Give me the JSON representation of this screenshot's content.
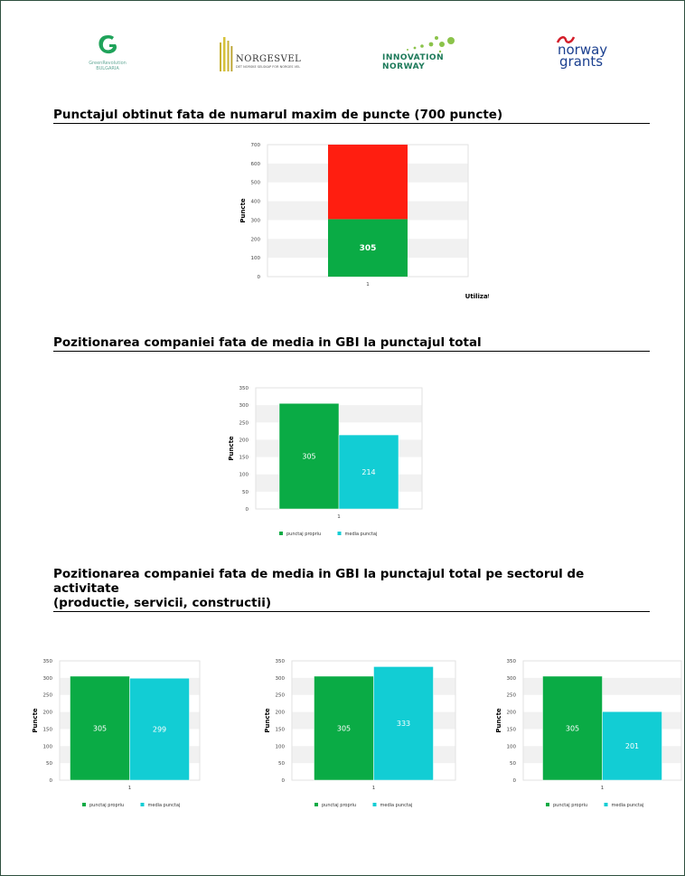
{
  "logos": {
    "greenrevolution": {
      "line1": "GreenRevolution",
      "line2": "BULGARIA"
    },
    "norgesvel": {
      "name": "NORGESVEL",
      "tagline": "DET NORSKE SELSKAP FOR NORGES VEL"
    },
    "innovation_norway": {
      "line1": "INNOVATION",
      "line2": "NORWAY"
    },
    "norway_grants": {
      "line1": "norway",
      "line2": "grants"
    }
  },
  "headings": {
    "h1": "Punctajul obtinut fata de numarul maxim de puncte (700 puncte)",
    "h2": "Pozitionarea companiei fata de media in GBI la punctajul total",
    "h3_line1": "Pozitionarea companiei fata de media in GBI la punctajul total pe sectorul de activitate",
    "h3_line2": "(productie, servicii, constructii)"
  },
  "colors": {
    "green": "#0aab45",
    "red": "#ff1e10",
    "cyan": "#12cdd4",
    "band": "#f1f1f1"
  },
  "chart_data": [
    {
      "type": "bar",
      "stacked": true,
      "categories": [
        "1"
      ],
      "series": [
        {
          "values": [
            305
          ],
          "color": "#0aab45",
          "label": "305"
        },
        {
          "values": [
            395
          ],
          "color": "#ff1e10"
        }
      ],
      "ylabel": "Puncte",
      "xlabel": "Utilizator",
      "yticks": [
        0,
        100,
        200,
        300,
        400,
        500,
        600,
        700
      ],
      "ylim": [
        0,
        700
      ]
    },
    {
      "type": "bar",
      "categories": [
        "1"
      ],
      "series": [
        {
          "name": "punctaj propriu",
          "values": [
            305
          ],
          "color": "#0aab45"
        },
        {
          "name": "media punctaj",
          "values": [
            214
          ],
          "color": "#12cdd4"
        }
      ],
      "ylabel": "Puncte",
      "yticks": [
        0,
        50,
        100,
        150,
        200,
        250,
        300,
        350
      ],
      "ylim": [
        0,
        350
      ],
      "legend": "bottom"
    },
    {
      "type": "bar",
      "categories": [
        "1"
      ],
      "series": [
        {
          "name": "punctaj propriu",
          "values": [
            305
          ],
          "color": "#0aab45"
        },
        {
          "name": "media punctaj",
          "values": [
            299
          ],
          "color": "#12cdd4"
        }
      ],
      "ylabel": "Puncte",
      "yticks": [
        0,
        50,
        100,
        150,
        200,
        250,
        300,
        350
      ],
      "ylim": [
        0,
        350
      ],
      "legend": "bottom"
    },
    {
      "type": "bar",
      "categories": [
        "1"
      ],
      "series": [
        {
          "name": "punctaj propriu",
          "values": [
            305
          ],
          "color": "#0aab45"
        },
        {
          "name": "media punctaj",
          "values": [
            333
          ],
          "color": "#12cdd4"
        }
      ],
      "ylabel": "Puncte",
      "yticks": [
        0,
        50,
        100,
        150,
        200,
        250,
        300,
        350
      ],
      "ylim": [
        0,
        350
      ],
      "legend": "bottom"
    },
    {
      "type": "bar",
      "categories": [
        "1"
      ],
      "series": [
        {
          "name": "punctaj propriu",
          "values": [
            305
          ],
          "color": "#0aab45"
        },
        {
          "name": "media punctaj",
          "values": [
            201
          ],
          "color": "#12cdd4"
        }
      ],
      "ylabel": "Puncte",
      "yticks": [
        0,
        50,
        100,
        150,
        200,
        250,
        300,
        350
      ],
      "ylim": [
        0,
        350
      ],
      "legend": "bottom"
    }
  ]
}
